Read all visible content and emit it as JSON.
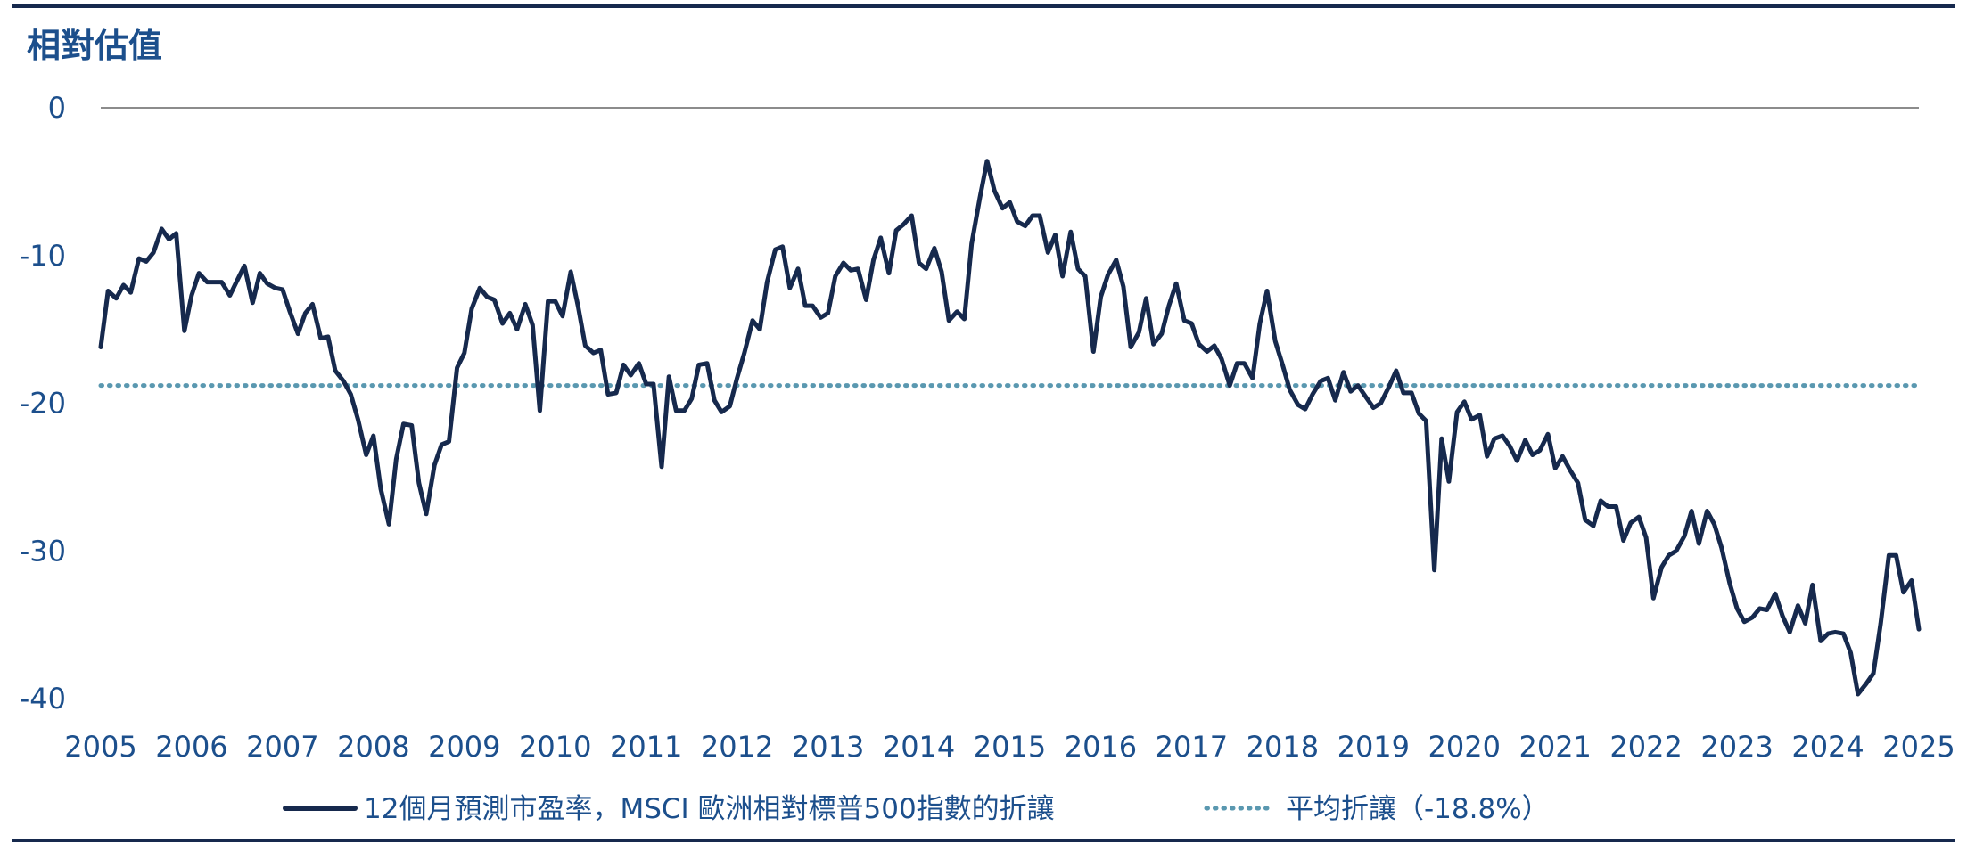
{
  "chart_data": {
    "type": "line",
    "title": "相對估值",
    "xlabel": "",
    "ylabel": "",
    "ylim": [
      -40,
      0
    ],
    "yticks": [
      0,
      -10,
      -20,
      -30,
      -40
    ],
    "xlim": [
      2005,
      2025
    ],
    "xticks": [
      "2005",
      "2006",
      "2007",
      "2008",
      "2009",
      "2010",
      "2011",
      "2012",
      "2013",
      "2014",
      "2015",
      "2016",
      "2017",
      "2018",
      "2019",
      "2020",
      "2021",
      "2022",
      "2023",
      "2024",
      "2025"
    ],
    "grid": false,
    "legend_position": "bottom",
    "series": [
      {
        "name": "12個月預測市盈率，MSCI 歐洲相對標普500指數的折讓",
        "color": "#16294d",
        "style": "solid",
        "x": [
          2005.0,
          2005.08,
          2005.17,
          2005.25,
          2005.33,
          2005.42,
          2005.5,
          2005.58,
          2005.67,
          2005.75,
          2005.83,
          2005.92,
          2006.0,
          2006.08,
          2006.17,
          2006.25,
          2006.33,
          2006.42,
          2006.5,
          2006.58,
          2006.67,
          2006.75,
          2006.83,
          2006.92,
          2007.0,
          2007.08,
          2007.17,
          2007.25,
          2007.33,
          2007.42,
          2007.5,
          2007.58,
          2007.67,
          2007.75,
          2007.83,
          2007.92,
          2008.0,
          2008.08,
          2008.17,
          2008.25,
          2008.33,
          2008.42,
          2008.5,
          2008.58,
          2008.67,
          2008.75,
          2008.83,
          2008.92,
          2009.0,
          2009.08,
          2009.17,
          2009.25,
          2009.33,
          2009.42,
          2009.5,
          2009.58,
          2009.67,
          2009.75,
          2009.83,
          2009.92,
          2010.0,
          2010.08,
          2010.17,
          2010.25,
          2010.33,
          2010.42,
          2010.5,
          2010.58,
          2010.67,
          2010.75,
          2010.83,
          2010.92,
          2011.0,
          2011.08,
          2011.17,
          2011.25,
          2011.33,
          2011.42,
          2011.5,
          2011.58,
          2011.67,
          2011.75,
          2011.83,
          2011.92,
          2012.0,
          2012.08,
          2012.17,
          2012.25,
          2012.33,
          2012.42,
          2012.5,
          2012.58,
          2012.67,
          2012.75,
          2012.83,
          2012.92,
          2013.0,
          2013.08,
          2013.17,
          2013.25,
          2013.33,
          2013.42,
          2013.5,
          2013.58,
          2013.67,
          2013.75,
          2013.83,
          2013.92,
          2014.0,
          2014.08,
          2014.17,
          2014.25,
          2014.33,
          2014.42,
          2014.5,
          2014.58,
          2014.67,
          2014.75,
          2014.83,
          2014.92,
          2015.0,
          2015.08,
          2015.17,
          2015.25,
          2015.33,
          2015.42,
          2015.5,
          2015.58,
          2015.67,
          2015.75,
          2015.83,
          2015.92,
          2016.0,
          2016.08,
          2016.17,
          2016.25,
          2016.33,
          2016.42,
          2016.5,
          2016.58,
          2016.67,
          2016.75,
          2016.83,
          2016.92,
          2017.0,
          2017.08,
          2017.17,
          2017.25,
          2017.33,
          2017.42,
          2017.5,
          2017.58,
          2017.67,
          2017.75,
          2017.83,
          2017.92,
          2018.0,
          2018.08,
          2018.17,
          2018.25,
          2018.33,
          2018.42,
          2018.5,
          2018.58,
          2018.67,
          2018.75,
          2018.83,
          2018.92,
          2019.0,
          2019.08,
          2019.17,
          2019.25,
          2019.33,
          2019.42,
          2019.5,
          2019.58,
          2019.67,
          2019.75,
          2019.83,
          2019.92,
          2020.0,
          2020.08,
          2020.17,
          2020.25,
          2020.33,
          2020.42,
          2020.5,
          2020.58,
          2020.67,
          2020.75,
          2020.83,
          2020.92,
          2021.0,
          2021.08,
          2021.17,
          2021.25,
          2021.33,
          2021.42,
          2021.5,
          2021.58,
          2021.67,
          2021.75,
          2021.83,
          2021.92,
          2022.0,
          2022.08,
          2022.17,
          2022.25,
          2022.33,
          2022.42,
          2022.5,
          2022.58,
          2022.67,
          2022.75,
          2022.83,
          2022.92,
          2023.0,
          2023.08,
          2023.17,
          2023.25,
          2023.33,
          2023.42,
          2023.5,
          2023.58,
          2023.67,
          2023.75,
          2023.83,
          2023.92,
          2024.0,
          2024.08,
          2024.17,
          2024.25,
          2024.33,
          2024.42,
          2024.5,
          2024.58,
          2024.67,
          2024.75,
          2024.83,
          2024.92,
          2025.0
        ],
        "values": [
          -16.2,
          -12.4,
          -12.9,
          -12.0,
          -12.5,
          -10.2,
          -10.4,
          -9.8,
          -8.2,
          -8.9,
          -8.5,
          -15.1,
          -12.7,
          -11.2,
          -11.8,
          -11.8,
          -11.8,
          -12.7,
          -11.7,
          -10.7,
          -13.2,
          -11.2,
          -11.9,
          -12.2,
          -12.3,
          -13.8,
          -15.3,
          -13.9,
          -13.3,
          -15.6,
          -15.5,
          -17.8,
          -18.5,
          -19.4,
          -21.1,
          -23.5,
          -22.2,
          -25.8,
          -28.2,
          -23.8,
          -21.4,
          -21.5,
          -25.4,
          -27.5,
          -24.2,
          -22.8,
          -22.6,
          -17.6,
          -16.6,
          -13.6,
          -12.2,
          -12.8,
          -13.0,
          -14.6,
          -13.9,
          -15.0,
          -13.3,
          -14.7,
          -20.5,
          -13.1,
          -13.1,
          -14.1,
          -11.1,
          -13.4,
          -16.1,
          -16.6,
          -16.4,
          -19.4,
          -19.3,
          -17.4,
          -18.1,
          -17.3,
          -18.7,
          -18.7,
          -24.3,
          -18.2,
          -20.5,
          -20.5,
          -19.7,
          -17.4,
          -17.3,
          -19.8,
          -20.6,
          -20.2,
          -18.3,
          -16.6,
          -14.4,
          -15.0,
          -11.8,
          -9.6,
          -9.4,
          -12.2,
          -10.9,
          -13.4,
          -13.4,
          -14.2,
          -13.9,
          -11.4,
          -10.5,
          -11.0,
          -10.9,
          -13.0,
          -10.3,
          -8.8,
          -11.2,
          -8.3,
          -7.9,
          -7.3,
          -10.5,
          -10.9,
          -9.5,
          -11.1,
          -14.4,
          -13.8,
          -14.3,
          -9.2,
          -6.1,
          -3.6,
          -5.6,
          -6.8,
          -6.4,
          -7.7,
          -8.0,
          -7.3,
          -7.3,
          -9.8,
          -8.6,
          -11.4,
          -8.4,
          -10.9,
          -11.4,
          -16.5,
          -12.8,
          -11.3,
          -10.3,
          -12.1,
          -16.2,
          -15.2,
          -12.9,
          -16.0,
          -15.3,
          -13.4,
          -11.9,
          -14.4,
          -14.6,
          -16.0,
          -16.5,
          -16.1,
          -17.0,
          -18.8,
          -17.3,
          -17.3,
          -18.3,
          -14.6,
          -12.4,
          -15.8,
          -17.4,
          -19.1,
          -20.1,
          -20.4,
          -19.4,
          -18.5,
          -18.3,
          -19.8,
          -17.9,
          -19.2,
          -18.8,
          -19.6,
          -20.3,
          -20.0,
          -18.9,
          -17.8,
          -19.3,
          -19.3,
          -20.7,
          -21.2,
          -31.3,
          -22.4,
          -25.3,
          -20.6,
          -19.9,
          -21.1,
          -20.8,
          -23.6,
          -22.4,
          -22.2,
          -22.9,
          -23.9,
          -22.5,
          -23.5,
          -23.2,
          -22.1,
          -24.4,
          -23.6,
          -24.6,
          -25.4,
          -27.9,
          -28.3,
          -26.6,
          -27.0,
          -27.0,
          -29.3,
          -28.1,
          -27.7,
          -29.1,
          -33.2,
          -31.1,
          -30.3,
          -30.0,
          -29.0,
          -27.3,
          -29.5,
          -27.3,
          -28.2,
          -29.8,
          -32.2,
          -33.9,
          -34.8,
          -34.5,
          -33.9,
          -34.0,
          -32.9,
          -34.4,
          -35.5,
          -33.7,
          -34.9,
          -32.3,
          -36.1,
          -35.6,
          -35.5,
          -35.6,
          -36.9,
          -39.7,
          -39.0,
          -38.3,
          -34.9,
          -30.3,
          -30.3,
          -32.8,
          -32.0,
          -35.3
        ]
      },
      {
        "name": "平均折讓（-18.8%）",
        "color": "#5a98b0",
        "style": "dotted",
        "x": [
          2005.0,
          2025.0
        ],
        "values": [
          -18.8,
          -18.8
        ]
      }
    ]
  },
  "colors": {
    "axis_text": "#1c4f8c",
    "border": "#16294d",
    "zero_line": "#666666"
  }
}
